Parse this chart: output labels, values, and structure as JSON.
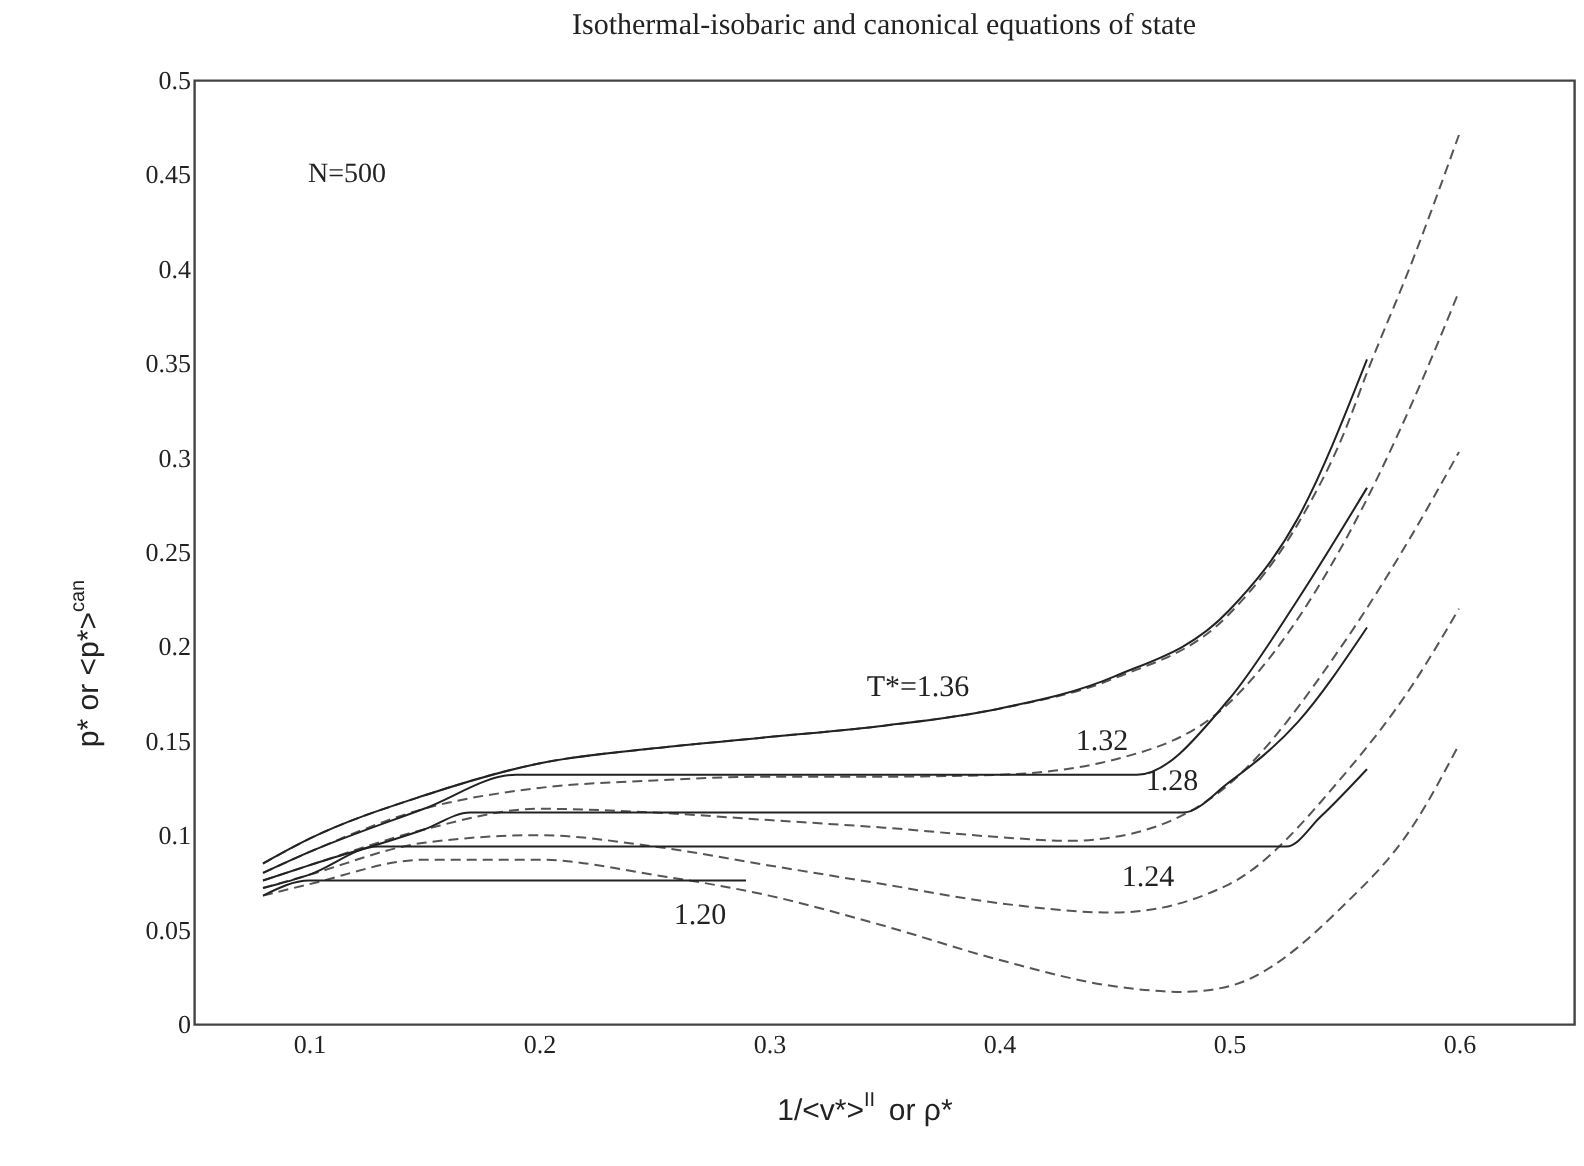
{
  "chart_data": {
    "type": "line",
    "title": "Isothermal-isobaric and canonical equations of state",
    "xlabel": "1/<v*>$^{II}$ or ρ*",
    "ylabel": "p* or <p*>$^{can}$",
    "xlim": [
      0.05,
      0.65
    ],
    "xticks": [
      0.1,
      0.2,
      0.3,
      0.4,
      0.5,
      0.6
    ],
    "ylim": [
      0,
      0.5
    ],
    "yticks": [
      0,
      0.05,
      0.1,
      0.15,
      0.2,
      0.25,
      0.3,
      0.35,
      0.4,
      0.45,
      0.5
    ],
    "grid": false,
    "series": [
      {
        "color": "#555555",
        "line_style": "dashed",
        "x": [
          0.08,
          0.1,
          0.15,
          0.2,
          0.25,
          0.3,
          0.35,
          0.4,
          0.45,
          0.5,
          0.53,
          0.55,
          0.56,
          0.58,
          0.6
        ],
        "values": [
          0.085,
          0.098,
          0.121,
          0.138,
          0.146,
          0.152,
          0.158,
          0.167,
          0.183,
          0.217,
          0.265,
          0.313,
          0.345,
          0.405,
          0.471
        ]
      },
      {
        "color": "#222222",
        "line_style": "solid",
        "x": [
          0.08,
          0.1,
          0.15,
          0.2,
          0.25,
          0.3,
          0.35,
          0.4,
          0.45,
          0.5,
          0.53,
          0.56
        ],
        "values": [
          0.085,
          0.098,
          0.121,
          0.138,
          0.146,
          0.152,
          0.158,
          0.167,
          0.184,
          0.219,
          0.268,
          0.352
        ]
      },
      {
        "color": "#555555",
        "line_style": "dashed",
        "x": [
          0.08,
          0.1,
          0.15,
          0.2,
          0.25,
          0.3,
          0.35,
          0.4,
          0.45,
          0.5,
          0.55,
          0.58,
          0.6
        ],
        "values": [
          0.08,
          0.091,
          0.114,
          0.125,
          0.129,
          0.131,
          0.131,
          0.132,
          0.14,
          0.17,
          0.255,
          0.33,
          0.388
        ]
      },
      {
        "color": "#222222",
        "line_style": "solid",
        "x": [
          0.08,
          0.1,
          0.15,
          0.19,
          0.46,
          0.5,
          0.53,
          0.56
        ],
        "values": [
          0.08,
          0.091,
          0.114,
          0.132,
          0.132,
          0.172,
          0.225,
          0.284
        ]
      },
      {
        "color": "#555555",
        "line_style": "dashed",
        "x": [
          0.08,
          0.1,
          0.15,
          0.2,
          0.25,
          0.3,
          0.35,
          0.4,
          0.43,
          0.45,
          0.5,
          0.55,
          0.58,
          0.6
        ],
        "values": [
          0.076,
          0.084,
          0.103,
          0.114,
          0.112,
          0.108,
          0.104,
          0.099,
          0.097,
          0.099,
          0.127,
          0.202,
          0.26,
          0.303
        ]
      },
      {
        "color": "#222222",
        "line_style": "solid",
        "x": [
          0.08,
          0.1,
          0.15,
          0.17,
          0.48,
          0.5,
          0.53,
          0.56
        ],
        "values": [
          0.076,
          0.084,
          0.103,
          0.112,
          0.112,
          0.128,
          0.16,
          0.21
        ]
      },
      {
        "color": "#555555",
        "line_style": "dashed",
        "x": [
          0.08,
          0.1,
          0.15,
          0.2,
          0.25,
          0.3,
          0.35,
          0.4,
          0.45,
          0.5,
          0.55,
          0.58,
          0.6
        ],
        "values": [
          0.072,
          0.079,
          0.096,
          0.1,
          0.094,
          0.084,
          0.074,
          0.064,
          0.059,
          0.074,
          0.132,
          0.18,
          0.22
        ]
      },
      {
        "color": "#222222",
        "line_style": "solid",
        "x": [
          0.08,
          0.1,
          0.13,
          0.525,
          0.54,
          0.56
        ],
        "values": [
          0.072,
          0.079,
          0.094,
          0.094,
          0.11,
          0.135
        ]
      },
      {
        "color": "#555555",
        "line_style": "dashed",
        "x": [
          0.08,
          0.1,
          0.15,
          0.2,
          0.25,
          0.3,
          0.35,
          0.4,
          0.45,
          0.48,
          0.5,
          0.55,
          0.58,
          0.6
        ],
        "values": [
          0.068,
          0.074,
          0.087,
          0.087,
          0.079,
          0.068,
          0.052,
          0.034,
          0.02,
          0.017,
          0.02,
          0.063,
          0.105,
          0.148
        ]
      },
      {
        "color": "#222222",
        "line_style": "solid",
        "x": [
          0.08,
          0.1,
          0.29
        ],
        "values": [
          0.068,
          0.076,
          0.076
        ]
      }
    ],
    "annotations": [
      "N=500",
      "T*=1.36",
      "1.32",
      "1.28",
      "1.24",
      "1.20"
    ]
  }
}
